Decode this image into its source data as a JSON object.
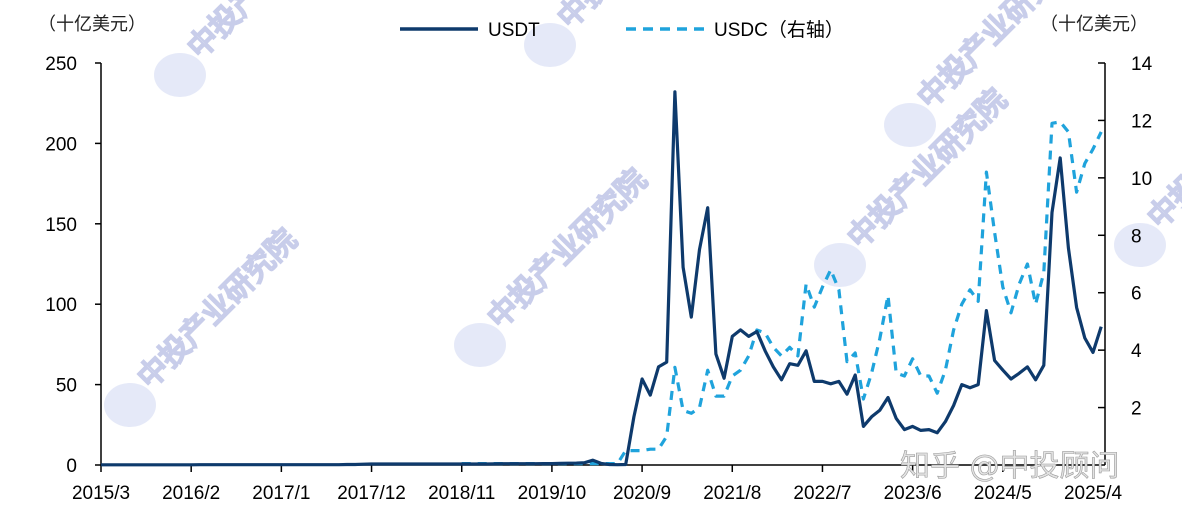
{
  "chart_data": {
    "type": "line",
    "title": "",
    "left_axis_unit": "（十亿美元）",
    "right_axis_unit": "（十亿美元）",
    "ylim_left": [
      0,
      250
    ],
    "ylim_right": [
      0,
      14
    ],
    "yticks_left": [
      "0",
      "50",
      "100",
      "150",
      "200",
      "250"
    ],
    "yticks_right": [
      "2",
      "4",
      "6",
      "8",
      "10",
      "12",
      "14"
    ],
    "xtick_labels": [
      "2015/3",
      "2016/2",
      "2017/1",
      "2017/12",
      "2018/11",
      "2019/10",
      "2020/9",
      "2021/8",
      "2022/7",
      "2023/6",
      "2024/5",
      "2025/4"
    ],
    "grid": false,
    "legend_position": "top-center",
    "x": [
      "2015/3",
      "2015/4",
      "2015/5",
      "2015/6",
      "2015/7",
      "2015/8",
      "2015/9",
      "2015/10",
      "2015/11",
      "2015/12",
      "2016/1",
      "2016/2",
      "2016/3",
      "2016/4",
      "2016/5",
      "2016/6",
      "2016/7",
      "2016/8",
      "2016/9",
      "2016/10",
      "2016/11",
      "2016/12",
      "2017/1",
      "2017/2",
      "2017/3",
      "2017/4",
      "2017/5",
      "2017/6",
      "2017/7",
      "2017/8",
      "2017/9",
      "2017/10",
      "2017/11",
      "2017/12",
      "2018/1",
      "2018/2",
      "2018/3",
      "2018/4",
      "2018/5",
      "2018/6",
      "2018/7",
      "2018/8",
      "2018/9",
      "2018/10",
      "2018/11",
      "2018/12",
      "2019/1",
      "2019/2",
      "2019/3",
      "2019/4",
      "2019/5",
      "2019/6",
      "2019/7",
      "2019/8",
      "2019/9",
      "2019/10",
      "2019/11",
      "2019/12",
      "2020/1",
      "2020/2",
      "2020/3",
      "2020/4",
      "2020/5",
      "2020/6",
      "2020/7",
      "2020/8",
      "2020/9",
      "2020/10",
      "2020/11",
      "2020/12",
      "2021/1",
      "2021/2",
      "2021/3",
      "2021/4",
      "2021/5",
      "2021/6",
      "2021/7",
      "2021/8",
      "2021/9",
      "2021/10",
      "2021/11",
      "2021/12",
      "2022/1",
      "2022/2",
      "2022/3",
      "2022/4",
      "2022/5",
      "2022/6",
      "2022/7",
      "2022/8",
      "2022/9",
      "2022/10",
      "2022/11",
      "2022/12",
      "2023/1",
      "2023/2",
      "2023/3",
      "2023/4",
      "2023/5",
      "2023/6",
      "2023/7",
      "2023/8",
      "2023/9",
      "2023/10",
      "2023/11",
      "2023/12",
      "2024/1",
      "2024/2",
      "2024/3",
      "2024/4",
      "2024/5",
      "2024/6",
      "2024/7",
      "2024/8",
      "2024/9",
      "2024/10",
      "2024/11",
      "2024/12",
      "2025/1",
      "2025/2",
      "2025/3",
      "2025/4",
      "2025/5"
    ],
    "series": [
      {
        "name": "USDT",
        "axis": "left",
        "color": "#0e3a6c",
        "style": "solid",
        "values": [
          0.1,
          0.1,
          0.1,
          0.1,
          0.1,
          0.1,
          0.1,
          0.1,
          0.1,
          0.1,
          0.1,
          0.1,
          0.2,
          0.2,
          0.2,
          0.2,
          0.2,
          0.2,
          0.2,
          0.2,
          0.2,
          0.2,
          0.2,
          0.2,
          0.2,
          0.2,
          0.2,
          0.2,
          0.2,
          0.2,
          0.3,
          0.3,
          0.5,
          0.6,
          0.6,
          0.6,
          0.6,
          0.6,
          0.6,
          0.6,
          0.6,
          0.6,
          0.6,
          0.6,
          0.6,
          0.6,
          0.6,
          0.6,
          0.7,
          0.8,
          0.8,
          0.8,
          0.8,
          0.8,
          0.9,
          0.9,
          1.0,
          1.1,
          1.2,
          1.4,
          3.0,
          1.0,
          0.3,
          0.2,
          0.3,
          30,
          53.5,
          43.5,
          61,
          64,
          232,
          123,
          92,
          134,
          160,
          69,
          54,
          80,
          84,
          80,
          83,
          71,
          61,
          53,
          63,
          62,
          71,
          52,
          52,
          50.5,
          52,
          44,
          56,
          24,
          30,
          34,
          42,
          29,
          22,
          24,
          21.5,
          22,
          20,
          27,
          37,
          50,
          48,
          50,
          96,
          65,
          59,
          53.5,
          57,
          61,
          53,
          62,
          157,
          191,
          135,
          98,
          79,
          70,
          86
        ]
      },
      {
        "name": "USDC（右轴）",
        "axis": "right",
        "color": "#1fa3dc",
        "style": "dashed",
        "values": [
          null,
          null,
          null,
          null,
          null,
          null,
          null,
          null,
          null,
          null,
          null,
          null,
          null,
          null,
          null,
          null,
          null,
          null,
          null,
          null,
          null,
          null,
          null,
          null,
          null,
          null,
          null,
          null,
          null,
          null,
          null,
          null,
          null,
          null,
          null,
          null,
          null,
          null,
          null,
          null,
          null,
          null,
          null,
          null,
          0.05,
          0.05,
          0.05,
          0.05,
          0.05,
          0.05,
          0.05,
          0.05,
          0.05,
          0.05,
          0.05,
          0.05,
          0.05,
          0.05,
          0.05,
          0.05,
          0.05,
          0.05,
          0.05,
          0.05,
          0.5,
          0.5,
          0.5,
          0.55,
          0.55,
          1.0,
          3.4,
          1.9,
          1.8,
          2.0,
          3.3,
          2.4,
          2.4,
          3.1,
          3.3,
          3.8,
          4.7,
          4.6,
          4.1,
          3.8,
          4.1,
          3.8,
          6.3,
          5.5,
          6.2,
          6.8,
          6.1,
          3.6,
          3.9,
          2.3,
          3.2,
          4.4,
          5.9,
          3.2,
          3.1,
          3.7,
          3.1,
          3.1,
          2.5,
          3.3,
          4.7,
          5.6,
          6.1,
          5.7,
          10.2,
          8.1,
          6.2,
          5.3,
          6.3,
          7.0,
          5.6,
          6.7,
          11.9,
          11.95,
          11.6,
          9.5,
          10.5,
          11.0,
          11.6
        ]
      }
    ]
  },
  "legend": {
    "usdt": "USDT",
    "usdc": "USDC（右轴）"
  },
  "watermarks": {
    "institute": "中投产业研究院",
    "zhihu": "知乎 @中投顾问"
  }
}
